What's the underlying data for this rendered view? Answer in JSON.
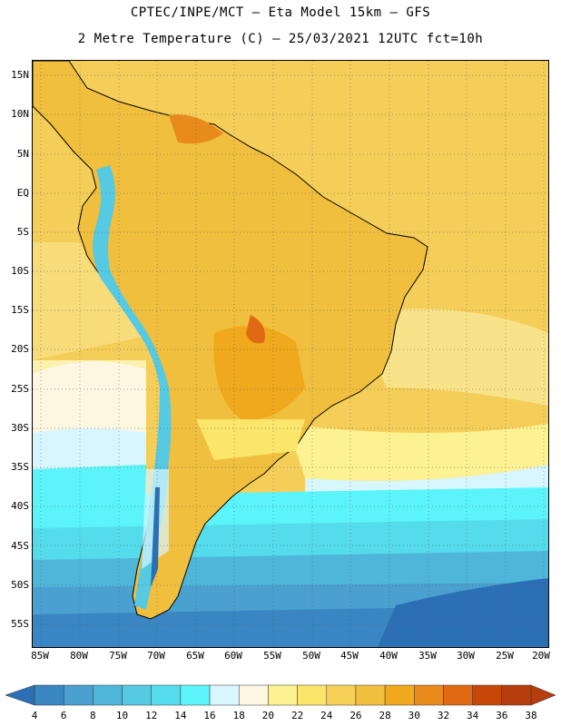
{
  "title": {
    "line1": "CPTEC/INPE/MCT –  Eta Model 15km – GFS",
    "line2": "2 Metre Temperature (C) – 25/03/2021 12UTC fct=10h"
  },
  "lat_labels": [
    "15N",
    "10N",
    "5N",
    "EQ",
    "5S",
    "10S",
    "15S",
    "20S",
    "25S",
    "30S",
    "35S",
    "40S",
    "45S",
    "50S",
    "55S"
  ],
  "lon_labels": [
    "85W",
    "80W",
    "75W",
    "70W",
    "65W",
    "60W",
    "55W",
    "50W",
    "45W",
    "40W",
    "35W",
    "30W",
    "25W",
    "20W"
  ],
  "colorbar": {
    "values": [
      "4",
      "6",
      "8",
      "10",
      "12",
      "14",
      "16",
      "18",
      "20",
      "22",
      "24",
      "26",
      "28",
      "30",
      "32",
      "34",
      "36",
      "38"
    ],
    "colors": [
      "#2b70b5",
      "#3a86c2",
      "#4aa0cf",
      "#4fb6da",
      "#56c9e3",
      "#55dcec",
      "#5cf4fb",
      "#d8f6fe",
      "#fdf7e2",
      "#fdf291",
      "#fbe56b",
      "#f6d156",
      "#f0bf3d",
      "#f0a81c",
      "#e98a1c",
      "#df6a13",
      "#c84607",
      "#b53d0e"
    ]
  }
}
